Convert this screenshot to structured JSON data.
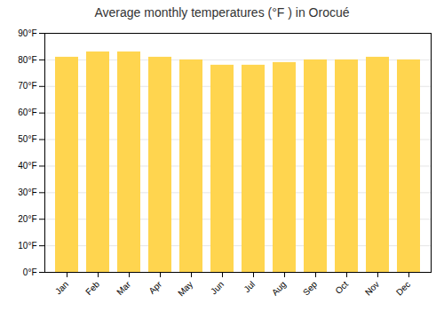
{
  "chart_data": {
    "type": "bar",
    "title": "Average monthly temperatures (°F ) in Orocué",
    "categories": [
      "Jan",
      "Feb",
      "Mar",
      "Apr",
      "May",
      "Jun",
      "Jul",
      "Aug",
      "Sep",
      "Oct",
      "Nov",
      "Dec"
    ],
    "values": [
      81,
      83,
      83,
      81,
      80,
      78,
      78,
      79,
      80,
      80,
      81,
      80
    ],
    "color": "#FFD54F",
    "ylim": [
      0,
      90
    ],
    "yticks": [
      {
        "value": 0,
        "label": "0°F"
      },
      {
        "value": 10,
        "label": "10°F"
      },
      {
        "value": 20,
        "label": "20°F"
      },
      {
        "value": 30,
        "label": "30°F"
      },
      {
        "value": 40,
        "label": "40°F"
      },
      {
        "value": 50,
        "label": "50°F"
      },
      {
        "value": 60,
        "label": "60°F"
      },
      {
        "value": 70,
        "label": "70°F"
      },
      {
        "value": 80,
        "label": "80°F"
      },
      {
        "value": 90,
        "label": "90°F"
      }
    ],
    "grid": true
  }
}
